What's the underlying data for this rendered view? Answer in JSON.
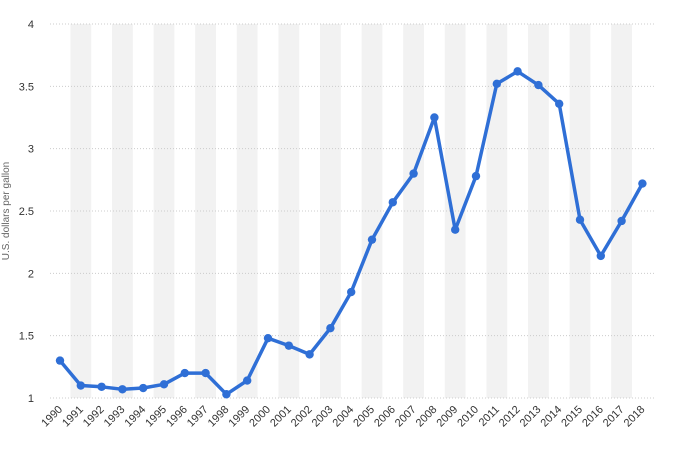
{
  "chart_data": {
    "type": "line",
    "title": "",
    "xlabel": "",
    "ylabel": "U.S. dollars per gallon",
    "x": [
      "1990",
      "1991",
      "1992",
      "1993",
      "1994",
      "1995",
      "1996",
      "1997",
      "1998",
      "1999",
      "2000",
      "2001",
      "2002",
      "2003",
      "2004",
      "2005",
      "2006",
      "2007",
      "2008",
      "2009",
      "2010",
      "2011",
      "2012",
      "2013",
      "2014",
      "2015",
      "2016",
      "2017",
      "2018"
    ],
    "series": [
      {
        "values": [
          1.3,
          1.1,
          1.09,
          1.07,
          1.08,
          1.11,
          1.2,
          1.2,
          1.03,
          1.14,
          1.48,
          1.42,
          1.35,
          1.56,
          1.85,
          2.27,
          2.57,
          2.8,
          3.25,
          2.35,
          2.78,
          3.52,
          3.62,
          3.51,
          3.36,
          2.43,
          2.14,
          2.42,
          2.72
        ]
      }
    ],
    "yticks": [
      "1",
      "1.5",
      "2",
      "2.5",
      "3",
      "3.5",
      "4"
    ],
    "ylim": [
      1,
      4
    ],
    "grid": true,
    "legend": "none",
    "colors": {
      "line": "#2f6fd6",
      "band": "#f2f2f2",
      "grid": "#cccccc"
    }
  }
}
